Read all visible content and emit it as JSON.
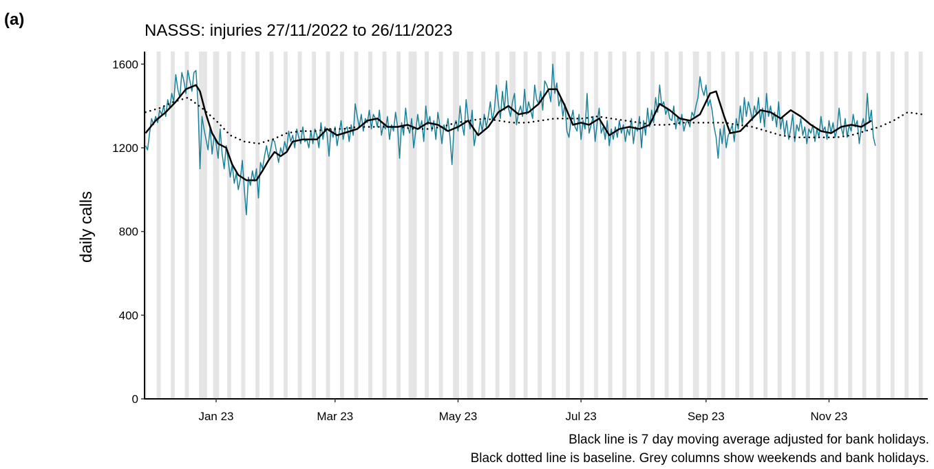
{
  "chart_data": {
    "type": "line",
    "panel_label": "(a)",
    "title": "NASSS: injuries 27/11/2022 to 26/11/2023",
    "ylabel": "daily calls",
    "caption": [
      "Black line is 7 day moving average adjusted for bank holidays.",
      "Black dotted line is baseline. Grey columns show weekends and bank holidays."
    ],
    "xlim": [
      -0.5,
      388
    ],
    "xticks": [
      {
        "value": 35,
        "label": "Jan 23"
      },
      {
        "value": 94,
        "label": "Mar 23"
      },
      {
        "value": 155,
        "label": "May 23"
      },
      {
        "value": 216,
        "label": "Jul 23"
      },
      {
        "value": 278,
        "label": "Sep 23"
      },
      {
        "value": 339,
        "label": "Nov 23"
      }
    ],
    "ylim": [
      0,
      1660
    ],
    "yticks": [
      0,
      400,
      800,
      1200,
      1600
    ],
    "shade_color": "#e5e5e5",
    "shaded_columns": [
      [
        0,
        0
      ],
      [
        6,
        7
      ],
      [
        13,
        14
      ],
      [
        20,
        21
      ],
      [
        27,
        30
      ],
      [
        34,
        36
      ],
      [
        41,
        42
      ],
      [
        48,
        49
      ],
      [
        55,
        56
      ],
      [
        62,
        63
      ],
      [
        69,
        70
      ],
      [
        76,
        77
      ],
      [
        83,
        84
      ],
      [
        90,
        91
      ],
      [
        97,
        98
      ],
      [
        104,
        105
      ],
      [
        111,
        112
      ],
      [
        118,
        119
      ],
      [
        125,
        126
      ],
      [
        131,
        134
      ],
      [
        139,
        140
      ],
      [
        146,
        147
      ],
      [
        153,
        155
      ],
      [
        160,
        162
      ],
      [
        167,
        168
      ],
      [
        174,
        175
      ],
      [
        181,
        183
      ],
      [
        188,
        189
      ],
      [
        195,
        196
      ],
      [
        202,
        203
      ],
      [
        209,
        210
      ],
      [
        216,
        217
      ],
      [
        223,
        224
      ],
      [
        230,
        231
      ],
      [
        237,
        238
      ],
      [
        244,
        245
      ],
      [
        251,
        252
      ],
      [
        258,
        259
      ],
      [
        265,
        266
      ],
      [
        272,
        274
      ],
      [
        279,
        280
      ],
      [
        286,
        287
      ],
      [
        293,
        294
      ],
      [
        300,
        301
      ],
      [
        307,
        308
      ],
      [
        314,
        315
      ],
      [
        321,
        322
      ],
      [
        328,
        329
      ],
      [
        335,
        336
      ],
      [
        342,
        343
      ],
      [
        349,
        350
      ],
      [
        356,
        357
      ],
      [
        363,
        364
      ],
      [
        370,
        371
      ],
      [
        377,
        378
      ],
      [
        384,
        385
      ]
    ],
    "series": [
      {
        "color": "#1a8199",
        "width": 1.5,
        "dash": "solid",
        "x": [
          0,
          1,
          2,
          3,
          4,
          5,
          6,
          7,
          8,
          9,
          10,
          11,
          12,
          13,
          14,
          15,
          16,
          17,
          18,
          19,
          20,
          21,
          22,
          23,
          24,
          25,
          26,
          27,
          28,
          29,
          30,
          31,
          32,
          33,
          34,
          35,
          36,
          37,
          38,
          39,
          40,
          41,
          42,
          43,
          44,
          45,
          46,
          47,
          48,
          49,
          50,
          51,
          52,
          53,
          54,
          55,
          56,
          57,
          58,
          59,
          60,
          61,
          62,
          63,
          64,
          65,
          66,
          67,
          68,
          69,
          70,
          71,
          72,
          73,
          74,
          75,
          76,
          77,
          78,
          79,
          80,
          81,
          82,
          83,
          84,
          85,
          86,
          87,
          88,
          89,
          90,
          91,
          92,
          93,
          94,
          95,
          96,
          97,
          98,
          99,
          100,
          101,
          102,
          103,
          104,
          105,
          106,
          107,
          108,
          109,
          110,
          111,
          112,
          113,
          114,
          115,
          116,
          117,
          118,
          119,
          120,
          121,
          122,
          123,
          124,
          125,
          126,
          127,
          128,
          129,
          130,
          131,
          132,
          133,
          134,
          135,
          136,
          137,
          138,
          139,
          140,
          141,
          142,
          143,
          144,
          145,
          146,
          147,
          148,
          149,
          150,
          151,
          152,
          153,
          154,
          155,
          156,
          157,
          158,
          159,
          160,
          161,
          162,
          163,
          164,
          165,
          166,
          167,
          168,
          169,
          170,
          171,
          172,
          173,
          174,
          175,
          176,
          177,
          178,
          179,
          180,
          181,
          182,
          183,
          184,
          185,
          186,
          187,
          188,
          189,
          190,
          191,
          192,
          193,
          194,
          195,
          196,
          197,
          198,
          199,
          200,
          201,
          202,
          203,
          204,
          205,
          206,
          207,
          208,
          209,
          210,
          211,
          212,
          213,
          214,
          215,
          216,
          217,
          218,
          219,
          220,
          221,
          222,
          223,
          224,
          225,
          226,
          227,
          228,
          229,
          230,
          231,
          232,
          233,
          234,
          235,
          236,
          237,
          238,
          239,
          240,
          241,
          242,
          243,
          244,
          245,
          246,
          247,
          248,
          249,
          250,
          251,
          252,
          253,
          254,
          255,
          256,
          257,
          258,
          259,
          260,
          261,
          262,
          263,
          264,
          265,
          266,
          267,
          268,
          269,
          270,
          271,
          272,
          273,
          274,
          275,
          276,
          277,
          278,
          279,
          280,
          281,
          282,
          283,
          284,
          285,
          286,
          287,
          288,
          289,
          290,
          291,
          292,
          293,
          294,
          295,
          296,
          297,
          298,
          299,
          300,
          301,
          302,
          303,
          304,
          305,
          306,
          307,
          308,
          309,
          310,
          311,
          312,
          313,
          314,
          315,
          316,
          317,
          318,
          319,
          320,
          321,
          322,
          323,
          324,
          325,
          326,
          327,
          328,
          329,
          330,
          331,
          332,
          333,
          334,
          335,
          336,
          337,
          338,
          339,
          340,
          341,
          342,
          343,
          344,
          345,
          346,
          347,
          348,
          349,
          350,
          351,
          352,
          353,
          354,
          355,
          356,
          357,
          358,
          359,
          360,
          361,
          362
        ],
        "values": [
          1210,
          1190,
          1270,
          1340,
          1310,
          1350,
          1320,
          1380,
          1360,
          1400,
          1350,
          1430,
          1390,
          1460,
          1420,
          1550,
          1480,
          1440,
          1560,
          1520,
          1460,
          1570,
          1520,
          1470,
          1560,
          1570,
          1420,
          1100,
          1350,
          1290,
          1240,
          1190,
          1300,
          1170,
          1260,
          1220,
          1150,
          1290,
          1170,
          1100,
          1210,
          1140,
          1060,
          1120,
          1030,
          1080,
          1000,
          1050,
          1140,
          1000,
          880,
          1060,
          1020,
          1090,
          1040,
          1100,
          960,
          1130,
          1100,
          1160,
          1210,
          1150,
          1190,
          1240,
          1230,
          1180,
          1130,
          1200,
          1170,
          1230,
          1190,
          1280,
          1230,
          1260,
          1200,
          1290,
          1250,
          1220,
          1300,
          1230,
          1240,
          1200,
          1280,
          1220,
          1290,
          1260,
          1200,
          1320,
          1240,
          1300,
          1270,
          1160,
          1290,
          1250,
          1300,
          1210,
          1270,
          1330,
          1240,
          1290,
          1300,
          1230,
          1310,
          1260,
          1410,
          1350,
          1300,
          1360,
          1280,
          1340,
          1320,
          1380,
          1290,
          1360,
          1340,
          1300,
          1380,
          1260,
          1310,
          1290,
          1350,
          1240,
          1310,
          1280,
          1370,
          1300,
          1150,
          1320,
          1260,
          1390,
          1300,
          1270,
          1340,
          1200,
          1280,
          1360,
          1290,
          1330,
          1230,
          1400,
          1310,
          1350,
          1280,
          1330,
          1240,
          1370,
          1300,
          1220,
          1310,
          1280,
          1340,
          1250,
          1120,
          1300,
          1330,
          1280,
          1400,
          1310,
          1260,
          1430,
          1340,
          1290,
          1380,
          1210,
          1270,
          1260,
          1330,
          1280,
          1360,
          1300,
          1350,
          1420,
          1330,
          1380,
          1500,
          1410,
          1340,
          1470,
          1380,
          1520,
          1390,
          1350,
          1420,
          1460,
          1310,
          1370,
          1400,
          1350,
          1480,
          1360,
          1420,
          1380,
          1340,
          1500,
          1430,
          1410,
          1470,
          1380,
          1520,
          1500,
          1470,
          1420,
          1600,
          1460,
          1510,
          1400,
          1440,
          1350,
          1410,
          1280,
          1250,
          1330,
          1380,
          1300,
          1280,
          1360,
          1240,
          1330,
          1290,
          1460,
          1270,
          1310,
          1350,
          1230,
          1320,
          1390,
          1270,
          1300,
          1240,
          1330,
          1210,
          1290,
          1240,
          1300,
          1250,
          1330,
          1270,
          1310,
          1230,
          1290,
          1260,
          1340,
          1220,
          1300,
          1280,
          1350,
          1200,
          1330,
          1260,
          1390,
          1300,
          1380,
          1320,
          1440,
          1370,
          1500,
          1400,
          1420,
          1360,
          1390,
          1340,
          1330,
          1400,
          1290,
          1350,
          1310,
          1360,
          1280,
          1320,
          1330,
          1300,
          1370,
          1350,
          1400,
          1440,
          1540,
          1480,
          1450,
          1500,
          1400,
          1430,
          1380,
          1300,
          1250,
          1150,
          1290,
          1220,
          1310,
          1200,
          1260,
          1280,
          1310,
          1230,
          1340,
          1290,
          1400,
          1310,
          1440,
          1350,
          1420,
          1380,
          1330,
          1400,
          1360,
          1440,
          1320,
          1390,
          1300,
          1460,
          1350,
          1400,
          1330,
          1370,
          1300,
          1420,
          1290,
          1350,
          1260,
          1330,
          1240,
          1290,
          1360,
          1230,
          1310,
          1280,
          1340,
          1260,
          1300,
          1220,
          1290,
          1270,
          1310,
          1230,
          1290,
          1250,
          1350,
          1280,
          1300,
          1240,
          1330,
          1270,
          1320,
          1250,
          1290,
          1390,
          1300,
          1260,
          1340,
          1250,
          1310,
          1280,
          1360,
          1300,
          1330,
          1220,
          1300,
          1340,
          1280,
          1460,
          1320,
          1380,
          1250,
          1210
        ]
      },
      {
        "color": "#000000",
        "width": 2.5,
        "dash": "solid",
        "x": [
          0,
          5,
          10,
          15,
          20,
          25,
          27,
          30,
          33,
          36,
          40,
          43,
          46,
          50,
          55,
          58,
          61,
          64,
          67,
          70,
          73,
          78,
          85,
          90,
          95,
          100,
          105,
          110,
          115,
          120,
          125,
          130,
          135,
          140,
          145,
          150,
          155,
          160,
          165,
          170,
          175,
          180,
          185,
          190,
          195,
          200,
          204,
          208,
          212,
          216,
          220,
          225,
          230,
          235,
          240,
          245,
          250,
          255,
          260,
          265,
          270,
          275,
          280,
          283,
          287,
          290,
          295,
          300,
          305,
          310,
          315,
          320,
          325,
          330,
          335,
          340,
          345,
          350,
          355,
          360
        ],
        "values": [
          1270,
          1330,
          1370,
          1420,
          1480,
          1500,
          1470,
          1360,
          1270,
          1220,
          1200,
          1120,
          1070,
          1045,
          1045,
          1090,
          1140,
          1180,
          1160,
          1180,
          1230,
          1240,
          1240,
          1290,
          1260,
          1275,
          1290,
          1330,
          1340,
          1300,
          1300,
          1310,
          1290,
          1320,
          1310,
          1280,
          1300,
          1330,
          1260,
          1300,
          1370,
          1400,
          1360,
          1370,
          1410,
          1480,
          1480,
          1400,
          1310,
          1320,
          1310,
          1340,
          1260,
          1290,
          1300,
          1290,
          1310,
          1410,
          1380,
          1340,
          1330,
          1360,
          1460,
          1470,
          1350,
          1270,
          1280,
          1330,
          1380,
          1370,
          1340,
          1380,
          1350,
          1310,
          1280,
          1270,
          1300,
          1310,
          1300,
          1330
        ]
      },
      {
        "color": "#000000",
        "width": 2.5,
        "dash": "dotted",
        "x": [
          0,
          7,
          14,
          21,
          28,
          35,
          42,
          49,
          56,
          63,
          70,
          77,
          84,
          91,
          98,
          105,
          112,
          119,
          126,
          133,
          140,
          147,
          154,
          161,
          168,
          175,
          182,
          189,
          196,
          203,
          210,
          217,
          224,
          231,
          238,
          245,
          252,
          259,
          266,
          273,
          280,
          287,
          294,
          301,
          308,
          315,
          322,
          329,
          336,
          343,
          350,
          357,
          364,
          371,
          378,
          385
        ],
        "values": [
          1370,
          1390,
          1420,
          1440,
          1390,
          1330,
          1260,
          1230,
          1220,
          1240,
          1270,
          1280,
          1280,
          1290,
          1290,
          1300,
          1300,
          1300,
          1300,
          1290,
          1290,
          1300,
          1320,
          1330,
          1340,
          1330,
          1320,
          1320,
          1330,
          1340,
          1340,
          1340,
          1350,
          1340,
          1330,
          1320,
          1310,
          1310,
          1320,
          1320,
          1320,
          1320,
          1310,
          1300,
          1280,
          1260,
          1250,
          1250,
          1250,
          1250,
          1260,
          1280,
          1300,
          1330,
          1370,
          1360
        ]
      }
    ]
  }
}
